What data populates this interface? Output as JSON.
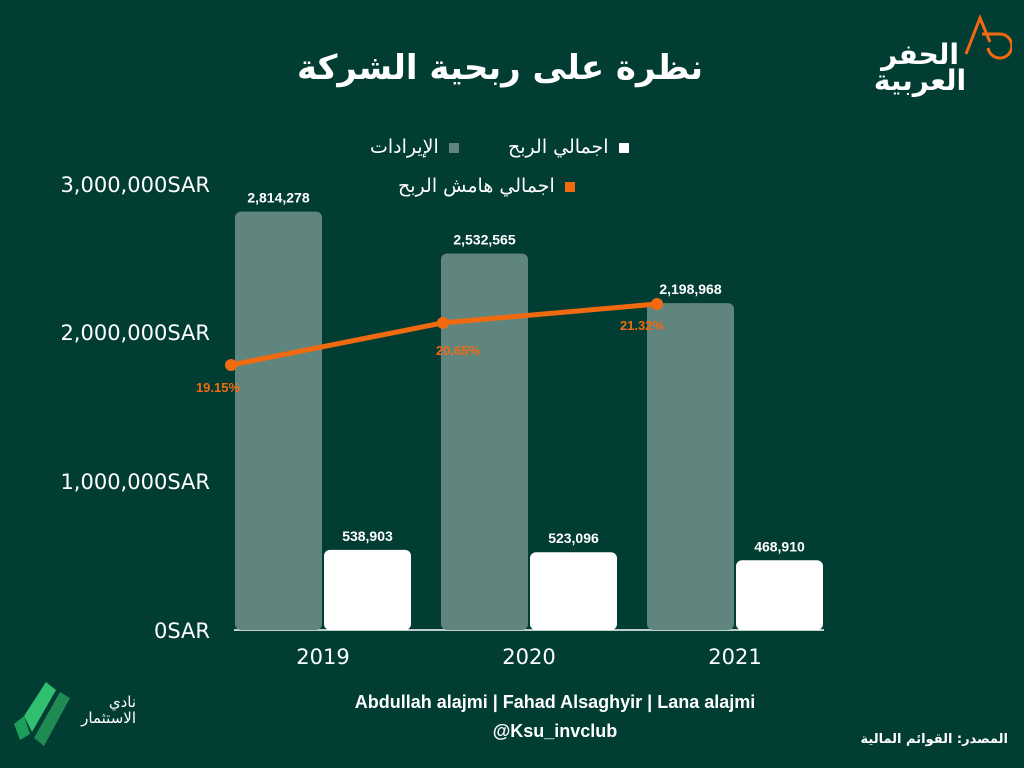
{
  "title": "نظرة على ربحية الشركة",
  "brand": {
    "name_line1": "الحفر",
    "name_line2": "العربية"
  },
  "legend": {
    "revenue": "الإيرادات",
    "gross_profit": "اجمالي الربح",
    "margin": "اجمالي هامش الربح"
  },
  "y_ticks": [
    "3,000,000SAR",
    "2,000,000SAR",
    "1,000,000SAR",
    "0SAR"
  ],
  "chart_data": {
    "type": "bar",
    "categories": [
      "2019",
      "2020",
      "2021"
    ],
    "ylim": [
      0,
      3000000
    ],
    "series": [
      {
        "name": "الإيرادات",
        "values": [
          2814278,
          2532565,
          2198968
        ],
        "labels": [
          "2,814,278",
          "2,532,565",
          "2,198,968"
        ],
        "color": "#5f857e"
      },
      {
        "name": "اجمالي الربح",
        "values": [
          538903,
          523096,
          468910
        ],
        "labels": [
          "538,903",
          "523,096",
          "468,910"
        ],
        "color": "#ffffff"
      }
    ],
    "line_series": {
      "name": "اجمالي هامش الربح",
      "values": [
        19.15,
        20.65,
        21.32
      ],
      "labels": [
        "19.15%",
        "20.65%",
        "21.32%"
      ],
      "color": "#f26a10"
    }
  },
  "credits": {
    "authors": "Abdullah alajmi | Fahad Alsaghyir | Lana alajmi",
    "handle": "@Ksu_invclub"
  },
  "source": "المصدر: القوائم المالية",
  "club": {
    "line1": "نادي",
    "line2": "الاستثمار"
  },
  "colors": {
    "background": "#023d34",
    "revenue": "#5f857e",
    "profit": "#ffffff",
    "margin": "#f26a10"
  }
}
